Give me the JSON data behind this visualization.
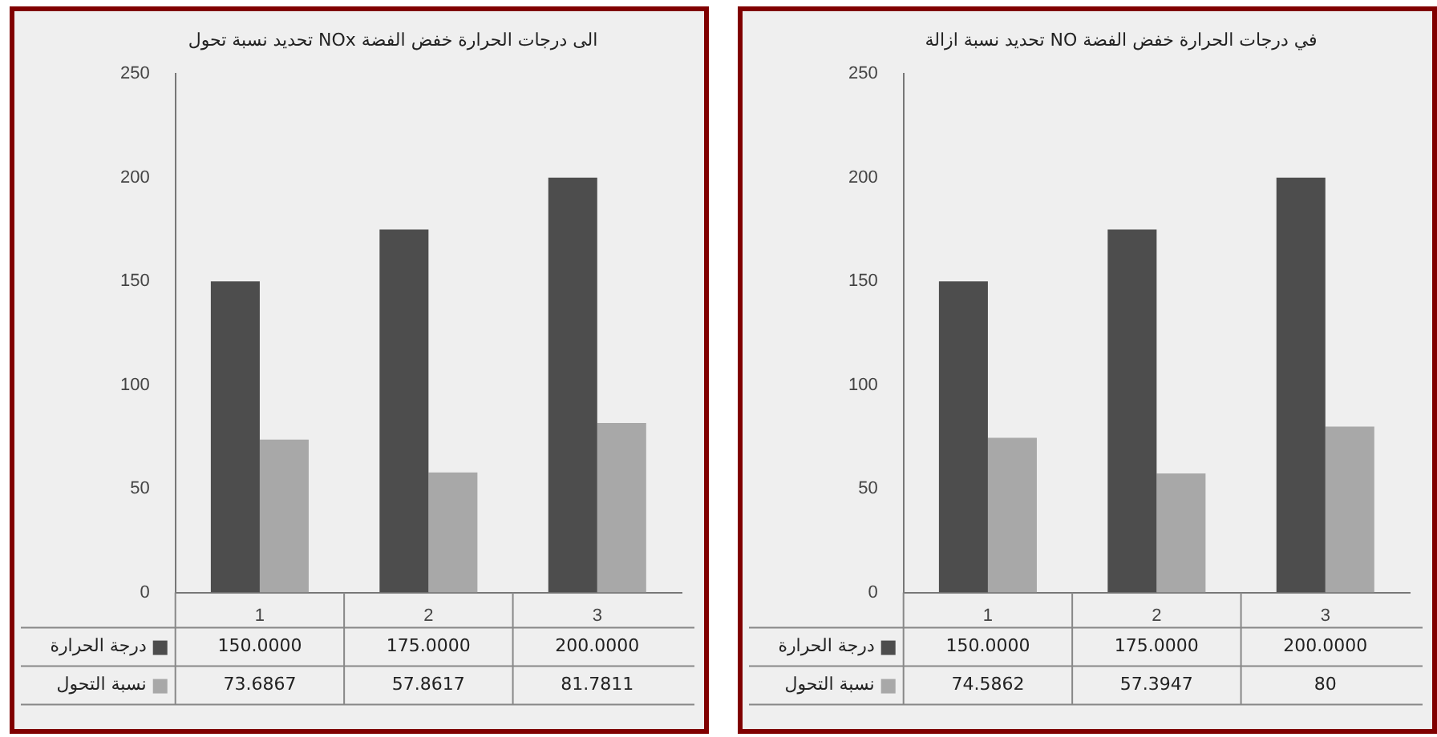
{
  "chart_data": [
    {
      "type": "bar",
      "title": "تحديد نسبة تحول NOx الى درجات الحرارة خفض الفضة",
      "categories": [
        "1",
        "2",
        "3"
      ],
      "series": [
        {
          "name": "درجة الحرارة",
          "color": "#4d4d4d",
          "values": [
            150,
            175,
            200
          ],
          "value_labels": [
            "150.0000",
            "175.0000",
            "200.0000"
          ]
        },
        {
          "name": "نسبة التحول",
          "color": "#a8a8a8",
          "values": [
            73.6867,
            57.8617,
            81.7811
          ],
          "value_labels": [
            "73.6867",
            "57.8617",
            "81.7811"
          ]
        }
      ],
      "ylim": [
        0,
        250
      ],
      "yticks": [
        0,
        50,
        100,
        150,
        200,
        250
      ],
      "legend": "bottom left"
    },
    {
      "type": "bar",
      "title": "تحديد نسبة ازالة NO في درجات الحرارة خفض الفضة",
      "categories": [
        "1",
        "2",
        "3"
      ],
      "series": [
        {
          "name": "درجة الحرارة",
          "color": "#4d4d4d",
          "values": [
            150,
            175,
            200
          ],
          "value_labels": [
            "150.0000",
            "175.0000",
            "200.0000"
          ]
        },
        {
          "name": "نسبة التحول",
          "color": "#a8a8a8",
          "values": [
            74.5862,
            57.3947,
            80
          ],
          "value_labels": [
            "74.5862",
            "57.3947",
            "80"
          ]
        }
      ],
      "ylim": [
        0,
        250
      ],
      "yticks": [
        0,
        50,
        100,
        150,
        200,
        250
      ],
      "legend": "bottom left"
    }
  ]
}
